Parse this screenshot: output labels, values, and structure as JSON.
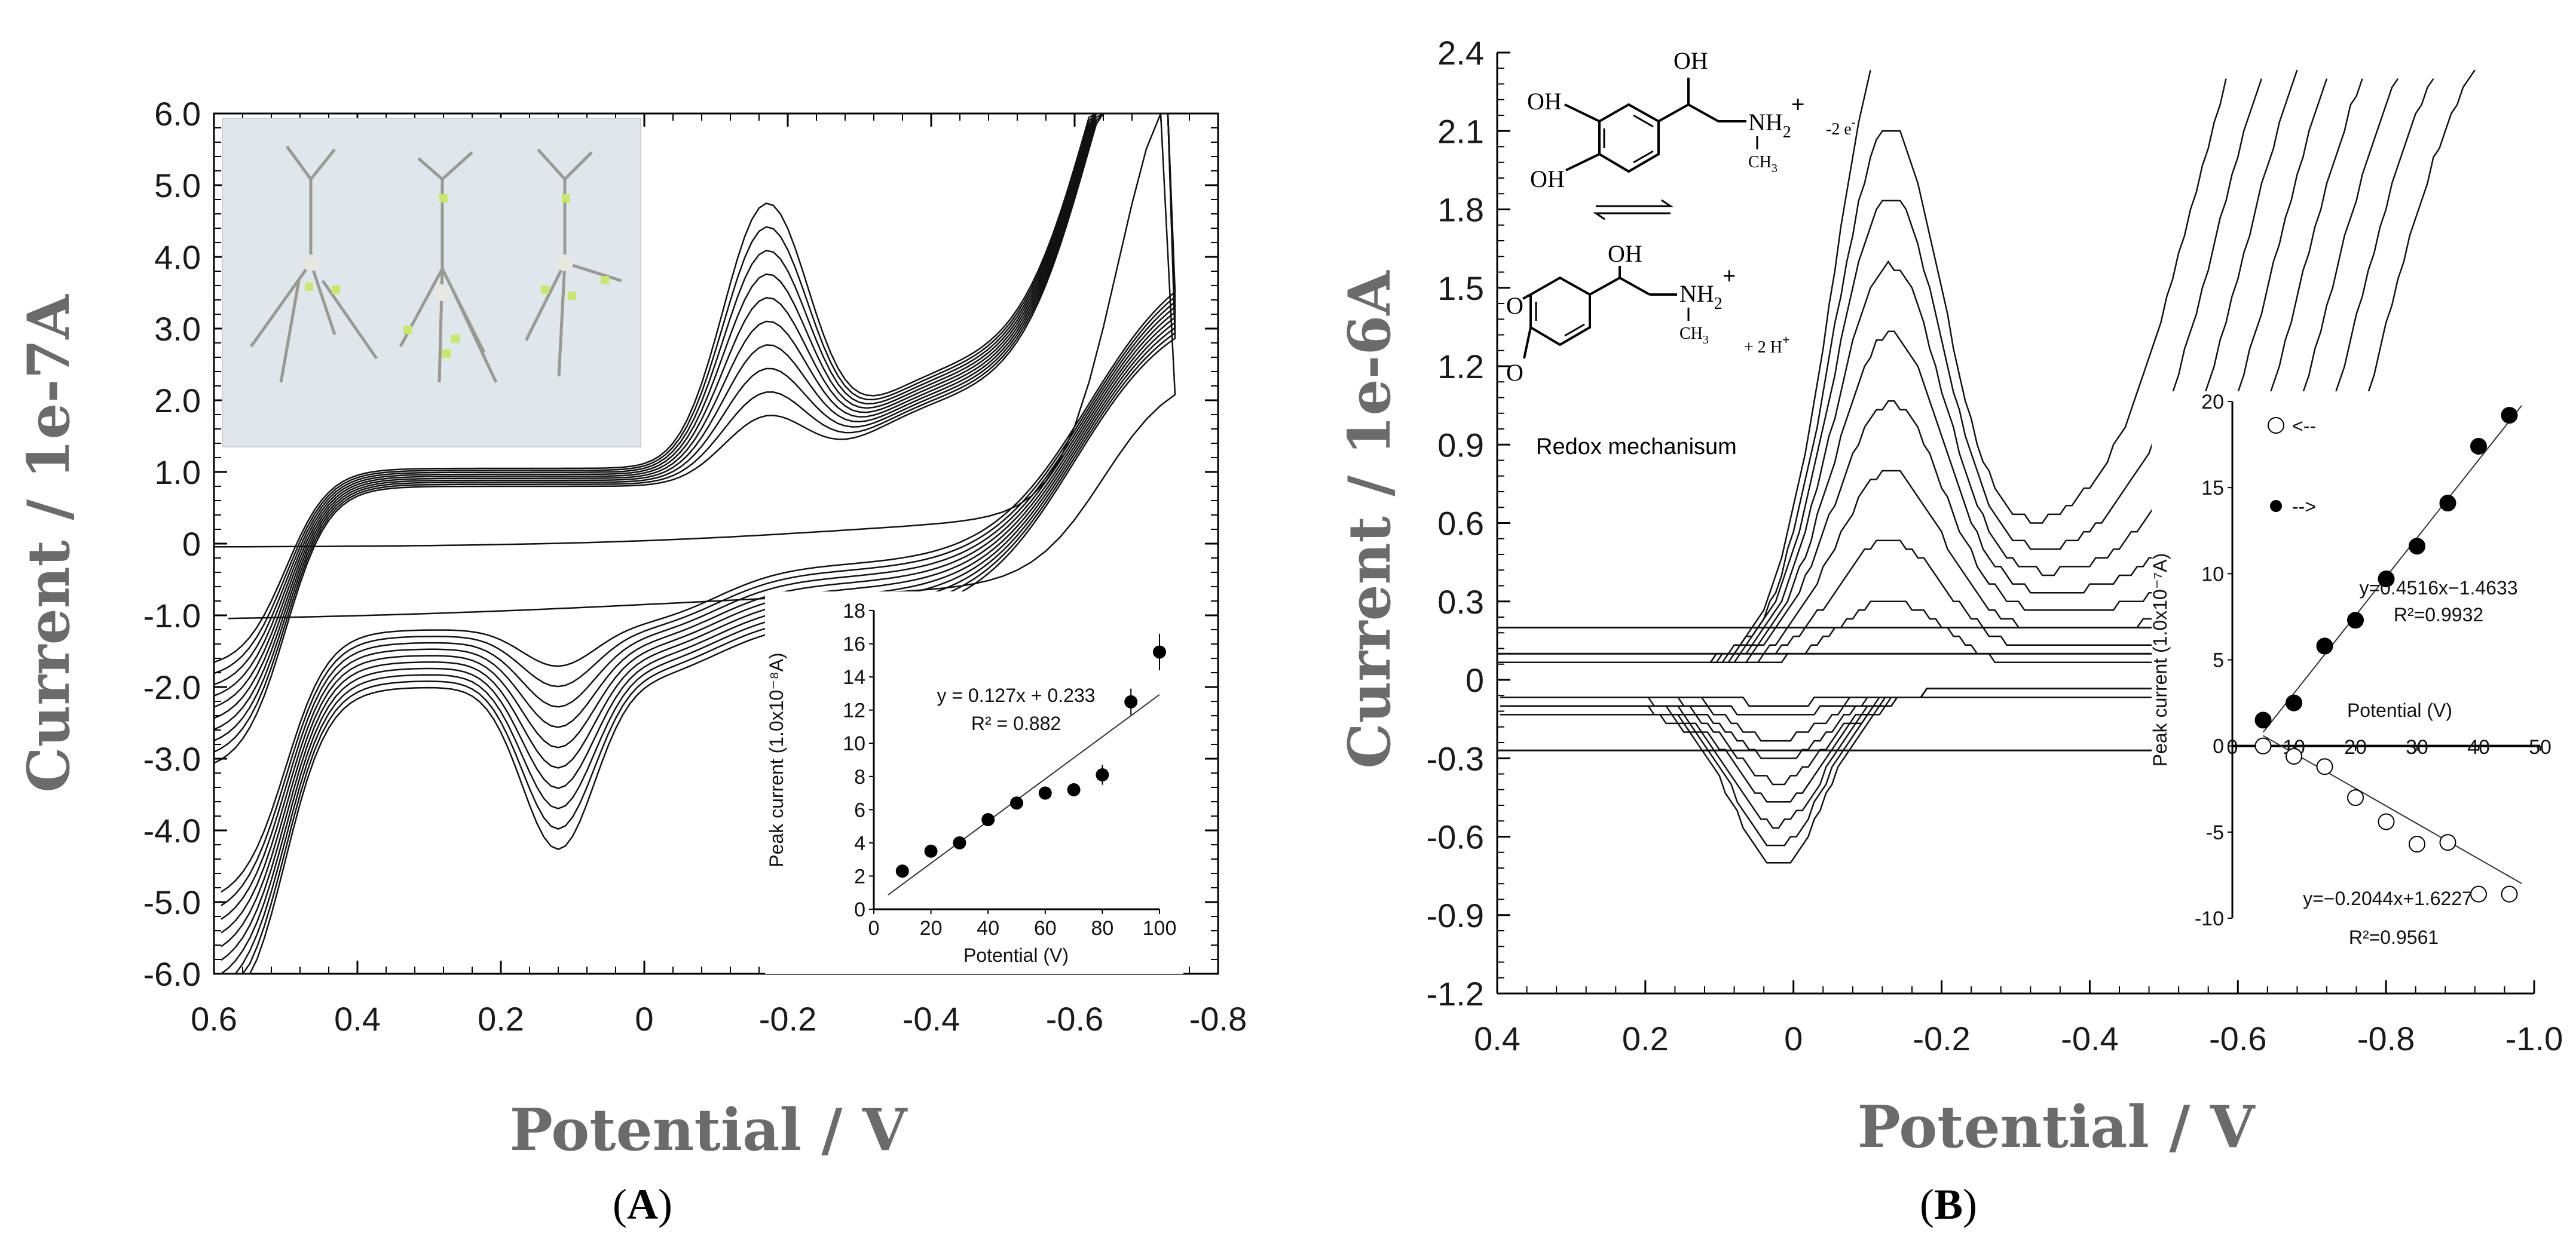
{
  "panels": {
    "A": {
      "label_open": "(",
      "label_letter": "A",
      "label_close": ")",
      "chart_data": {
        "type": "line",
        "xlabel": "Potential / V",
        "ylabel": "Current / 1e-7A",
        "xlim": [
          0.6,
          -0.8
        ],
        "ylim": [
          -6.0,
          6.0
        ],
        "x_ticks": [
          "0.6",
          "0.4",
          "0.2",
          "0",
          "-0.2",
          "-0.4",
          "-0.6",
          "-0.8"
        ],
        "y_ticks": [
          "-6.0",
          "-5.0",
          "-4.0",
          "-3.0",
          "-2.0",
          "-1.0",
          "0",
          "1.0",
          "2.0",
          "3.0",
          "4.0",
          "5.0",
          "6.0"
        ],
        "description_series": "cyclic voltammograms, 10 scan rates",
        "peak_heights_fwd": [
          0.9,
          1.2,
          1.5,
          1.8,
          2.1,
          2.4,
          2.7,
          3.0,
          3.3,
          3.6
        ],
        "peak_heights_rev": [
          0.4,
          0.55,
          0.7,
          0.85,
          1.0,
          1.15,
          1.3,
          1.45,
          1.6,
          1.75
        ]
      },
      "inset": {
        "type": "scatter",
        "xlabel": "Potential (V)",
        "ylabel": "Peak current (1.0x10⁻⁸A)",
        "equation": "y = 0.127x + 0.233",
        "r2": "R² = 0.882",
        "xlim": [
          0,
          100
        ],
        "ylim": [
          0,
          18
        ],
        "x_ticks": [
          "0",
          "20",
          "40",
          "60",
          "80",
          "100"
        ],
        "y_ticks": [
          "0",
          "2",
          "4",
          "6",
          "8",
          "10",
          "12",
          "14",
          "16",
          "18"
        ],
        "x": [
          10,
          20,
          30,
          40,
          50,
          60,
          70,
          80,
          90,
          100
        ],
        "y": [
          2.3,
          3.5,
          4.0,
          5.4,
          6.4,
          7.0,
          7.2,
          8.1,
          12.5,
          15.5
        ],
        "err": [
          0.2,
          0.2,
          0.2,
          0.2,
          0.3,
          0.4,
          0.4,
          0.6,
          0.8,
          1.1
        ],
        "fit": {
          "slope": 0.127,
          "intercept": 0.233
        }
      },
      "photo_alt": "three branched electrode samples"
    },
    "B": {
      "label_open": "(",
      "label_letter": "B",
      "label_close": ")",
      "chart_data": {
        "type": "line",
        "xlabel": "Potential / V",
        "ylabel": "Current / 1e-6A",
        "xlim": [
          0.4,
          -1.0
        ],
        "ylim": [
          -1.2,
          2.4
        ],
        "x_ticks": [
          "0.4",
          "0.2",
          "0",
          "-0.2",
          "-0.4",
          "-0.6",
          "-0.8",
          "-1.0"
        ],
        "y_ticks": [
          "-1.2",
          "-0.9",
          "-0.6",
          "-0.3",
          "0",
          "0.3",
          "0.6",
          "0.9",
          "1.2",
          "1.5",
          "1.8",
          "2.1",
          "2.4"
        ],
        "description_series": "cyclic voltammograms, 9 scan rates",
        "peak_heights_fwd": [
          0.25,
          0.42,
          0.62,
          0.82,
          1.02,
          1.22,
          1.42,
          1.62,
          1.92
        ],
        "peak_heights_rev": [
          0.05,
          0.1,
          0.18,
          0.26,
          0.34,
          0.42,
          0.5,
          0.58,
          0.66
        ]
      },
      "inset": {
        "type": "scatter",
        "xlabel": "Potential (V)",
        "ylabel": "Peak current (1.0x10⁻⁷A)",
        "xlim": [
          0,
          50
        ],
        "ylim": [
          -10,
          20
        ],
        "x_ticks": [
          "0",
          "10",
          "20",
          "30",
          "40",
          "50"
        ],
        "y_ticks": [
          "-10",
          "-5",
          "0",
          "5",
          "10",
          "15",
          "20"
        ],
        "legend": [
          {
            "marker": "open-circle",
            "label": "<--"
          },
          {
            "marker": "filled-circle",
            "label": "-->"
          }
        ],
        "series": [
          {
            "name": "-->",
            "marker": "filled",
            "x": [
              5,
              10,
              15,
              20,
              25,
              30,
              35,
              40,
              45
            ],
            "y": [
              1.5,
              2.5,
              5.8,
              7.3,
              9.7,
              11.6,
              14.1,
              17.4,
              19.2
            ],
            "fit": {
              "slope": 0.4516,
              "intercept": -1.4633
            },
            "equation": "y=0.4516x−1.4633",
            "r2": "R²=0.9932"
          },
          {
            "name": "<--",
            "marker": "open",
            "x": [
              5,
              10,
              15,
              20,
              25,
              30,
              35,
              40,
              45
            ],
            "y": [
              0.0,
              -0.6,
              -1.2,
              -3.0,
              -4.4,
              -5.7,
              -5.6,
              -8.6,
              -8.6
            ],
            "fit": {
              "slope": -0.2044,
              "intercept": 1.6227
            },
            "equation": "y=−0.2044x+1.6227",
            "r2": "R²=0.9561"
          }
        ]
      },
      "chemistry": {
        "oh_top": "OH",
        "oh_ring1": "OH",
        "oh_ring2": "OH",
        "nh2_top": "NH",
        "nh2_sub": "2",
        "nh2_plus": "+",
        "ch3_top": "CH",
        "ch3_sub": "3",
        "electrons": "-2 e",
        "electrons_sup": "-",
        "oh_bottom": "OH",
        "o1": "O",
        "o2": "O",
        "nh2_bottom": "NH",
        "nh2_sub_b": "2",
        "nh2_plus_b": "+",
        "ch3_bottom": "CH",
        "ch3_sub_b": "3",
        "protons": "+ 2 H",
        "protons_sup": "+",
        "mechanism_label": "Redox mechanisum"
      }
    }
  }
}
